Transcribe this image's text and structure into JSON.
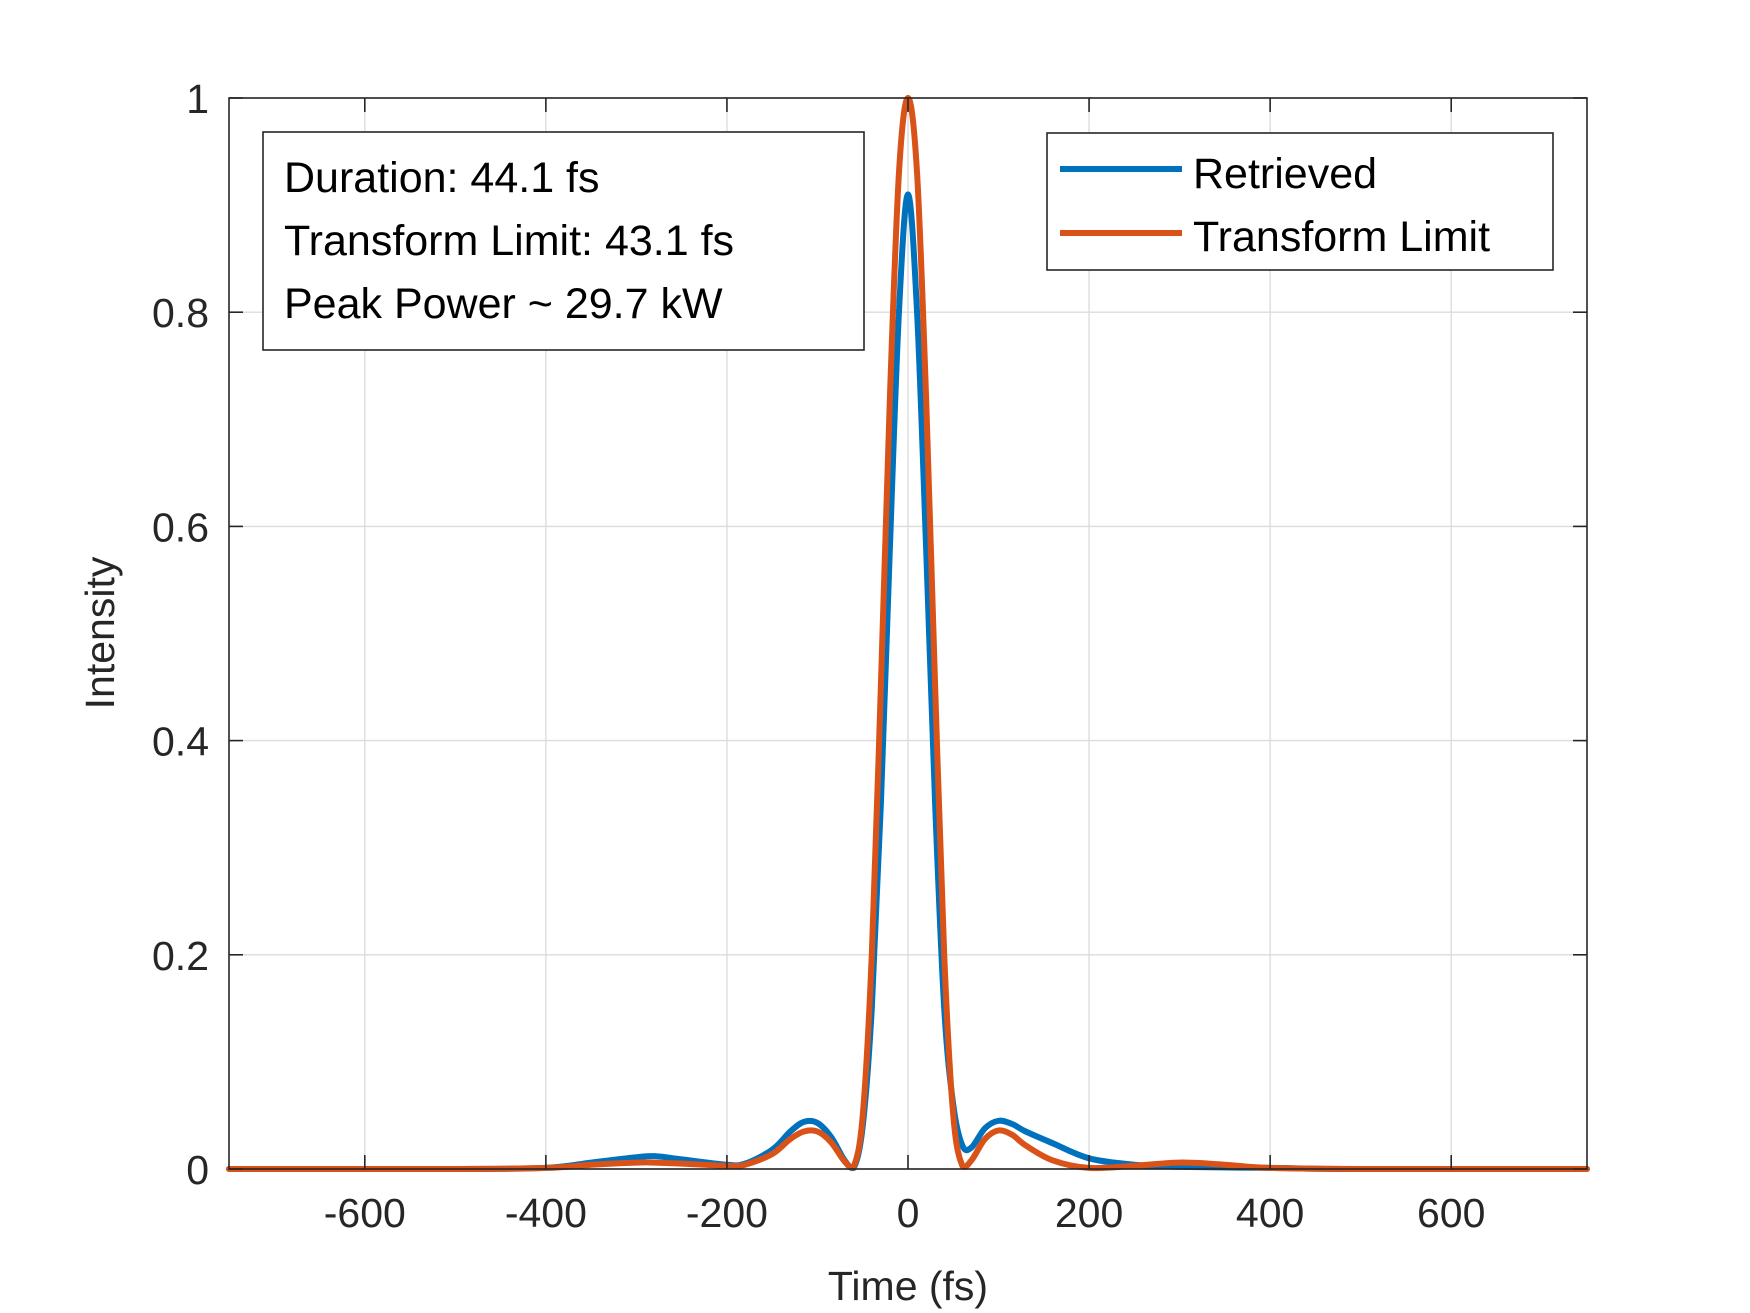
{
  "chart_data": {
    "type": "line",
    "title": "",
    "xlabel": "Time (fs)",
    "ylabel": "Intensity",
    "xlim": [
      -750,
      750
    ],
    "ylim": [
      0,
      1
    ],
    "xticks": [
      -600,
      -400,
      -200,
      0,
      200,
      400,
      600
    ],
    "xtick_labels": [
      "-600",
      "-400",
      "-200",
      "0",
      "200",
      "400",
      "600"
    ],
    "yticks": [
      0,
      0.2,
      0.4,
      0.6,
      0.8,
      1
    ],
    "ytick_labels": [
      "0",
      "0.2",
      "0.4",
      "0.6",
      "0.8",
      "1"
    ],
    "grid": true,
    "legend_position": "top-right",
    "annotation": {
      "lines": [
        "Duration: 44.1 fs",
        "Transform Limit: 43.1 fs",
        "Peak Power ~ 29.7 kW"
      ],
      "position": "top-left"
    },
    "series": [
      {
        "name": "Retrieved",
        "color": "#0072BD",
        "x": [
          -750,
          -500,
          -400,
          -350,
          -300,
          -280,
          -250,
          -200,
          -180,
          -150,
          -130,
          -115,
          -100,
          -85,
          -70,
          -60,
          -50,
          -40,
          -30,
          -20,
          -10,
          0,
          10,
          20,
          30,
          40,
          50,
          60,
          70,
          85,
          100,
          115,
          130,
          160,
          200,
          250,
          300,
          400,
          500,
          750
        ],
        "y": [
          0,
          0,
          0.001,
          0.006,
          0.011,
          0.012,
          0.009,
          0.004,
          0.005,
          0.018,
          0.035,
          0.044,
          0.043,
          0.03,
          0.008,
          0.001,
          0.04,
          0.15,
          0.34,
          0.58,
          0.8,
          0.91,
          0.8,
          0.58,
          0.34,
          0.15,
          0.06,
          0.022,
          0.02,
          0.038,
          0.045,
          0.042,
          0.035,
          0.024,
          0.01,
          0.004,
          0.002,
          0.001,
          0,
          0
        ]
      },
      {
        "name": "Transform Limit",
        "color": "#D95319",
        "x": [
          -750,
          -500,
          -400,
          -350,
          -300,
          -280,
          -250,
          -200,
          -180,
          -150,
          -130,
          -115,
          -100,
          -85,
          -70,
          -60,
          -50,
          -40,
          -30,
          -20,
          -10,
          0,
          10,
          20,
          30,
          40,
          50,
          60,
          70,
          85,
          100,
          115,
          130,
          160,
          200,
          250,
          300,
          350,
          400,
          500,
          750
        ],
        "y": [
          0,
          0,
          0.001,
          0.004,
          0.006,
          0.006,
          0.005,
          0.003,
          0.004,
          0.014,
          0.028,
          0.035,
          0.035,
          0.025,
          0.007,
          0.002,
          0.05,
          0.2,
          0.45,
          0.72,
          0.93,
          1.0,
          0.93,
          0.72,
          0.45,
          0.2,
          0.05,
          0.003,
          0.008,
          0.028,
          0.036,
          0.032,
          0.022,
          0.008,
          0.001,
          0.003,
          0.006,
          0.004,
          0.001,
          0,
          0
        ]
      }
    ]
  }
}
